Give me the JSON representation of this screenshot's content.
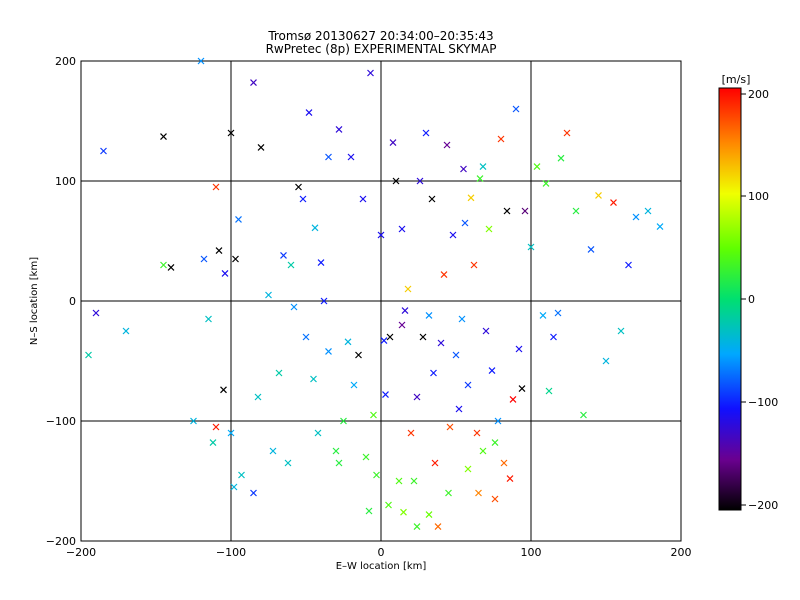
{
  "chart_data": {
    "type": "scatter",
    "title": "Tromsø 20130627 20:34:00–20:35:43",
    "subtitle": "RwPretec (8p) EXPERIMENTAL SKYMAP",
    "xlabel": "E–W location [km]",
    "ylabel": "N–S location [km]",
    "xlim": [
      -200,
      200
    ],
    "ylim": [
      -200,
      200
    ],
    "xticks": [
      "−200",
      "−100",
      "0",
      "100",
      "200"
    ],
    "yticks": [
      "200",
      "100",
      "0",
      "−100",
      "−200"
    ],
    "grid": true,
    "colorbar": {
      "label": "[m/s]",
      "range": [
        -200,
        200
      ],
      "ticks": [
        "200",
        "100",
        "0",
        "−100",
        "−200"
      ]
    },
    "series": [
      {
        "marker": "x",
        "points": [
          [
            -190,
            -10,
            -120
          ],
          [
            -185,
            125,
            -90
          ],
          [
            -145,
            137,
            -200
          ],
          [
            -140,
            28,
            -200
          ],
          [
            -120,
            200,
            -60
          ],
          [
            -115,
            -15,
            -30
          ],
          [
            -112,
            -118,
            -20
          ],
          [
            -110,
            95,
            180
          ],
          [
            -110,
            -105,
            190
          ],
          [
            -108,
            42,
            -200
          ],
          [
            -105,
            -74,
            -200
          ],
          [
            -104,
            23,
            -110
          ],
          [
            -100,
            140,
            -200
          ],
          [
            -98,
            -155,
            -40
          ],
          [
            -97,
            35,
            -200
          ],
          [
            -93,
            -145,
            -30
          ],
          [
            -85,
            182,
            -130
          ],
          [
            -85,
            -160,
            -90
          ],
          [
            -80,
            128,
            -200
          ],
          [
            -72,
            -125,
            -40
          ],
          [
            -65,
            38,
            -90
          ],
          [
            -62,
            -135,
            -30
          ],
          [
            -60,
            30,
            -20
          ],
          [
            -55,
            95,
            -200
          ],
          [
            -50,
            -30,
            -70
          ],
          [
            -48,
            157,
            -110
          ],
          [
            -44,
            61,
            -40
          ],
          [
            -42,
            -110,
            -30
          ],
          [
            -40,
            32,
            -100
          ],
          [
            -38,
            0,
            -100
          ],
          [
            -35,
            -42,
            -60
          ],
          [
            -30,
            -125,
            20
          ],
          [
            -28,
            143,
            -120
          ],
          [
            -25,
            -100,
            20
          ],
          [
            -22,
            -34,
            -40
          ],
          [
            -20,
            120,
            -110
          ],
          [
            -15,
            -45,
            -200
          ],
          [
            -10,
            -130,
            30
          ],
          [
            -7,
            190,
            -120
          ],
          [
            -5,
            -95,
            40
          ],
          [
            -3,
            -145,
            30
          ],
          [
            0,
            55,
            -110
          ],
          [
            2,
            -33,
            -100
          ],
          [
            3,
            -78,
            -100
          ],
          [
            5,
            -170,
            40
          ],
          [
            6,
            -30,
            -200
          ],
          [
            8,
            132,
            -130
          ],
          [
            10,
            100,
            -200
          ],
          [
            12,
            -150,
            40
          ],
          [
            14,
            -20,
            -150
          ],
          [
            15,
            -176,
            60
          ],
          [
            16,
            -8,
            -120
          ],
          [
            18,
            10,
            120
          ],
          [
            20,
            -110,
            180
          ],
          [
            22,
            -150,
            30
          ],
          [
            24,
            -188,
            30
          ],
          [
            26,
            100,
            -120
          ],
          [
            28,
            -30,
            -200
          ],
          [
            30,
            140,
            -100
          ],
          [
            32,
            -12,
            -60
          ],
          [
            34,
            85,
            -200
          ],
          [
            35,
            -60,
            -100
          ],
          [
            36,
            -135,
            190
          ],
          [
            38,
            -188,
            160
          ],
          [
            40,
            -35,
            -120
          ],
          [
            42,
            22,
            180
          ],
          [
            44,
            130,
            -150
          ],
          [
            46,
            -105,
            170
          ],
          [
            48,
            55,
            -110
          ],
          [
            50,
            -45,
            -80
          ],
          [
            52,
            -90,
            -110
          ],
          [
            54,
            -15,
            -60
          ],
          [
            55,
            110,
            -130
          ],
          [
            56,
            65,
            -80
          ],
          [
            58,
            -140,
            60
          ],
          [
            60,
            86,
            120
          ],
          [
            62,
            30,
            180
          ],
          [
            64,
            -110,
            180
          ],
          [
            65,
            -160,
            150
          ],
          [
            66,
            102,
            30
          ],
          [
            68,
            112,
            -30
          ],
          [
            70,
            -25,
            -120
          ],
          [
            72,
            60,
            60
          ],
          [
            74,
            -58,
            -100
          ],
          [
            76,
            -118,
            30
          ],
          [
            78,
            -100,
            -60
          ],
          [
            80,
            135,
            180
          ],
          [
            82,
            -135,
            160
          ],
          [
            84,
            75,
            -200
          ],
          [
            86,
            -148,
            190
          ],
          [
            88,
            -82,
            200
          ],
          [
            90,
            160,
            -80
          ],
          [
            92,
            -40,
            -110
          ],
          [
            94,
            -73,
            -200
          ],
          [
            96,
            75,
            -160
          ],
          [
            100,
            45,
            -30
          ],
          [
            104,
            112,
            40
          ],
          [
            108,
            -12,
            -50
          ],
          [
            110,
            98,
            30
          ],
          [
            112,
            -75,
            -10
          ],
          [
            115,
            -30,
            -100
          ],
          [
            118,
            -10,
            -70
          ],
          [
            120,
            119,
            20
          ],
          [
            124,
            140,
            180
          ],
          [
            130,
            75,
            20
          ],
          [
            135,
            -95,
            20
          ],
          [
            140,
            43,
            -80
          ],
          [
            145,
            88,
            120
          ],
          [
            150,
            -50,
            -40
          ],
          [
            155,
            82,
            190
          ],
          [
            160,
            -25,
            -30
          ],
          [
            165,
            30,
            -100
          ],
          [
            170,
            70,
            -60
          ],
          [
            178,
            75,
            -40
          ],
          [
            186,
            62,
            -50
          ],
          [
            -195,
            -45,
            -20
          ],
          [
            -170,
            -25,
            -40
          ],
          [
            -145,
            30,
            30
          ],
          [
            -125,
            -100,
            -40
          ],
          [
            -118,
            35,
            -80
          ],
          [
            -100,
            -110,
            -50
          ],
          [
            -95,
            68,
            -70
          ],
          [
            -82,
            -80,
            -30
          ],
          [
            -75,
            5,
            -40
          ],
          [
            -68,
            -60,
            -20
          ],
          [
            -58,
            -5,
            -60
          ],
          [
            -52,
            85,
            -100
          ],
          [
            -45,
            -65,
            -30
          ],
          [
            -35,
            120,
            -80
          ],
          [
            -28,
            -135,
            20
          ],
          [
            -18,
            -70,
            -50
          ],
          [
            -12,
            85,
            -110
          ],
          [
            -8,
            -175,
            20
          ],
          [
            14,
            60,
            -110
          ],
          [
            24,
            -80,
            -130
          ],
          [
            32,
            -178,
            50
          ],
          [
            45,
            -160,
            30
          ],
          [
            58,
            -70,
            -90
          ],
          [
            68,
            -125,
            40
          ],
          [
            76,
            -165,
            170
          ]
        ]
      }
    ]
  },
  "layout_hint": "Plot area left=81 top=61 right=681 bottom=541; colorbar left=719 top=88 width=22 height=422"
}
